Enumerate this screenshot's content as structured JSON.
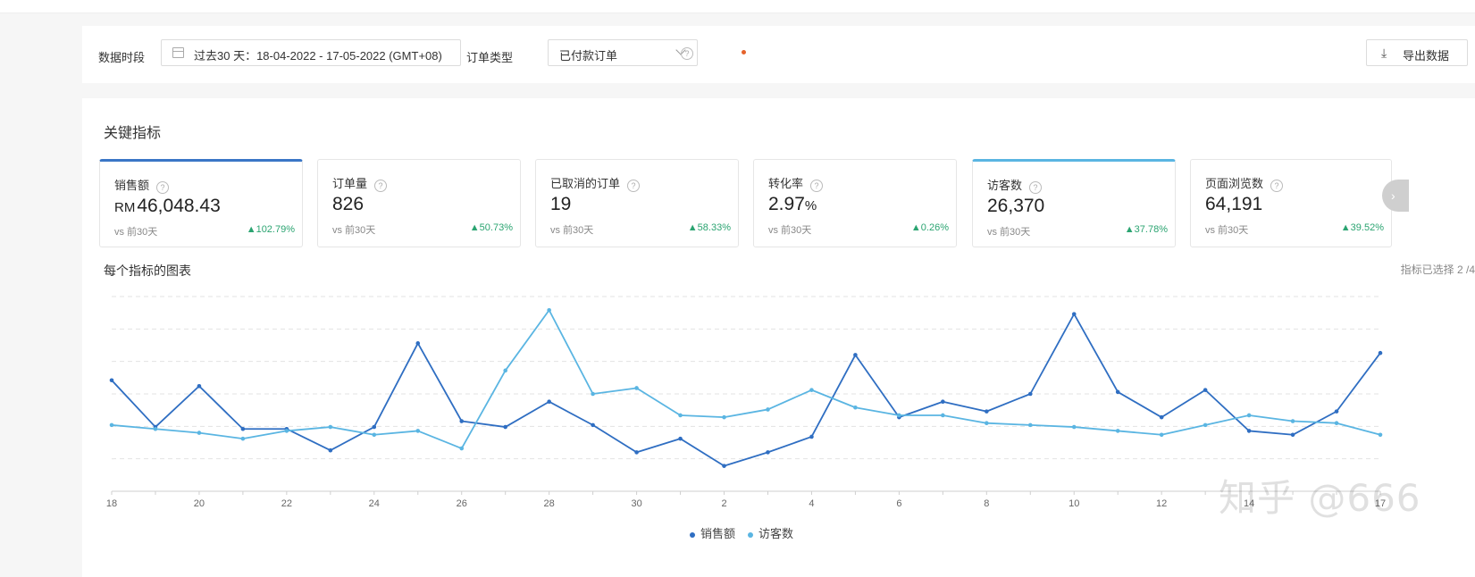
{
  "filter": {
    "period_label": "数据时段",
    "period_value": "过去30 天：18-04-2022 - 17-05-2022 (GMT+08)",
    "order_type_label": "订单类型",
    "order_type_value": "已付款订单",
    "export_label": "导出数据",
    "export_icon": "download-icon",
    "help_icon": "question-icon"
  },
  "key_metrics": {
    "title": "关键指标",
    "cards": [
      {
        "title": "销售额",
        "currency": "RM",
        "value": "46,048.43",
        "vs": "vs 前30天",
        "change": "▲102.79%",
        "selected": true,
        "accent": "#3a76c6"
      },
      {
        "title": "订单量",
        "currency": "",
        "value": "826",
        "vs": "vs 前30天",
        "change": "▲50.73%",
        "selected": false,
        "accent": ""
      },
      {
        "title": "已取消的订单",
        "currency": "",
        "value": "19",
        "vs": "vs 前30天",
        "change": "▲58.33%",
        "selected": false,
        "accent": ""
      },
      {
        "title": "转化率",
        "currency": "",
        "value": "2.97",
        "unit": "%",
        "vs": "vs 前30天",
        "change": "▲0.26%",
        "selected": false,
        "accent": ""
      },
      {
        "title": "访客数",
        "currency": "",
        "value": "26,370",
        "vs": "vs 前30天",
        "change": "▲37.78%",
        "selected": true,
        "accent": "#5ab5e2"
      },
      {
        "title": "页面浏览数",
        "currency": "",
        "value": "64,191",
        "vs": "vs 前30天",
        "change": "▲39.52%",
        "selected": false,
        "accent": ""
      }
    ],
    "next_icon": "chevron-right-icon"
  },
  "chart_section": {
    "title": "每个指标的图表",
    "selected_count": "指标已选择 2 /4"
  },
  "watermark": "知乎 @666",
  "colors": {
    "sales": "#2f6ec2",
    "visitors": "#5ab5e2",
    "up": "#2ba471"
  },
  "chart_data": {
    "type": "line",
    "x": [
      "18",
      "19",
      "20",
      "21",
      "22",
      "23",
      "24",
      "25",
      "26",
      "27",
      "28",
      "29",
      "30",
      "1",
      "2",
      "3",
      "4",
      "5",
      "6",
      "7",
      "8",
      "9",
      "10",
      "11",
      "12",
      "13",
      "14",
      "15",
      "16",
      "17"
    ],
    "tick_labels": [
      "18",
      "20",
      "22",
      "24",
      "26",
      "28",
      "30",
      "2",
      "4",
      "6",
      "8",
      "10",
      "12",
      "14",
      "17"
    ],
    "ylim": [
      0,
      100
    ],
    "grid": true,
    "legend_position": "bottom",
    "series": [
      {
        "name": "销售额",
        "color": "#2f6ec2",
        "values": [
          57,
          33,
          54,
          32,
          32,
          21,
          33,
          76,
          36,
          33,
          46,
          34,
          20,
          27,
          13,
          20,
          28,
          70,
          38,
          46,
          41,
          50,
          91,
          51,
          38,
          52,
          31,
          29,
          41,
          71
        ]
      },
      {
        "name": "访客数",
        "color": "#5ab5e2",
        "values": [
          34,
          32,
          30,
          27,
          31,
          33,
          29,
          31,
          22,
          62,
          93,
          50,
          53,
          39,
          38,
          42,
          52,
          43,
          39,
          39,
          35,
          34,
          33,
          31,
          29,
          34,
          39,
          36,
          35,
          29
        ]
      }
    ]
  }
}
